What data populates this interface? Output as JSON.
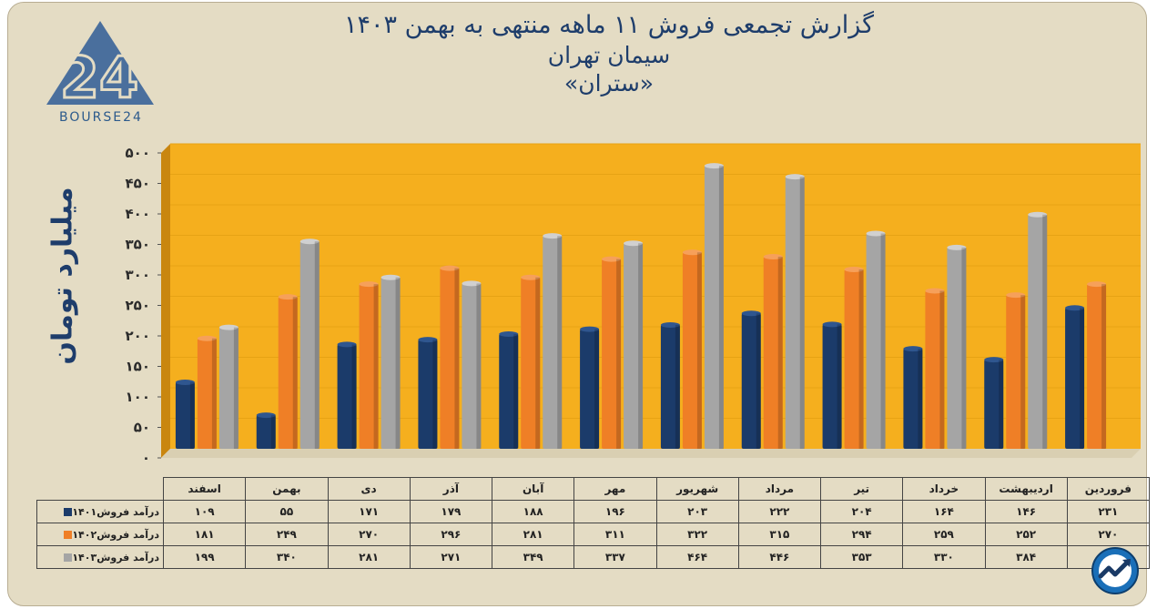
{
  "title": "گزارش تجمعی فروش ۱۱ ماهه منتهی به بهمن ۱۴۰۳",
  "subtitle": "سیمان تهران",
  "subtitle2": "«ستران»",
  "brand": {
    "logo_text": "BOURSE24",
    "logo_mark": "24"
  },
  "colors": {
    "s1401": "#1b3b6a",
    "s1402": "#ef7f26",
    "s1403": "#a5a5a5",
    "plot_bg": "#f5af1e",
    "background": "#e4dcc4",
    "title": "#1e3d6b"
  },
  "icons": {
    "brand_logo": "triangle-24-logo",
    "corner_logo": "trend-arrow-circle-icon"
  },
  "chart_data": {
    "type": "bar",
    "title": "گزارش تجمعی فروش ۱۱ ماهه منتهی به بهمن ۱۴۰۳",
    "ylabel": "میلیارد تومان",
    "ylim": [
      0,
      500
    ],
    "yticks": [
      "۰",
      "۵۰",
      "۱۰۰",
      "۱۵۰",
      "۲۰۰",
      "۲۵۰",
      "۳۰۰",
      "۳۵۰",
      "۴۰۰",
      "۴۵۰",
      "۵۰۰"
    ],
    "categories": [
      "فروردین",
      "اردیبهشت",
      "خرداد",
      "تیر",
      "مرداد",
      "شهریور",
      "مهر",
      "آبان",
      "آذر",
      "دی",
      "بهمن",
      "اسفند"
    ],
    "series": [
      {
        "name": "درآمد فروش۱۴۰۱",
        "values": [
          109,
          55,
          171,
          179,
          188,
          196,
          203,
          222,
          204,
          164,
          146,
          231
        ],
        "labels": [
          "۱۰۹",
          "۵۵",
          "۱۷۱",
          "۱۷۹",
          "۱۸۸",
          "۱۹۶",
          "۲۰۳",
          "۲۲۲",
          "۲۰۴",
          "۱۶۴",
          "۱۴۶",
          "۲۳۱"
        ]
      },
      {
        "name": "درآمد فروش۱۴۰۲",
        "values": [
          181,
          249,
          270,
          296,
          281,
          311,
          322,
          315,
          294,
          259,
          252,
          270
        ],
        "labels": [
          "۱۸۱",
          "۲۴۹",
          "۲۷۰",
          "۲۹۶",
          "۲۸۱",
          "۳۱۱",
          "۳۲۲",
          "۳۱۵",
          "۲۹۴",
          "۲۵۹",
          "۲۵۲",
          "۲۷۰"
        ]
      },
      {
        "name": "درآمد فروش۱۴۰۳",
        "values": [
          199,
          340,
          281,
          271,
          349,
          337,
          464,
          446,
          353,
          330,
          384,
          null
        ],
        "labels": [
          "۱۹۹",
          "۳۴۰",
          "۲۸۱",
          "۲۷۱",
          "۳۴۹",
          "۳۳۷",
          "۴۶۴",
          "۴۴۶",
          "۳۵۳",
          "۳۳۰",
          "۳۸۴",
          ""
        ]
      }
    ],
    "grid": true,
    "legend": "table-bottom"
  }
}
